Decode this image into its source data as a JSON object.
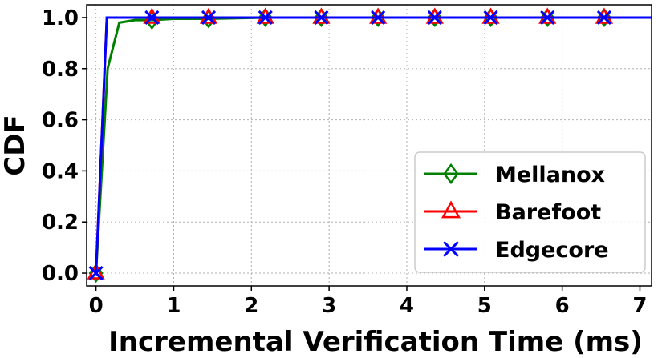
{
  "chart_data": {
    "type": "line",
    "xlabel": "Incremental Verification Time (ms)",
    "ylabel": "CDF",
    "xlim": [
      -0.12,
      7.15
    ],
    "ylim": [
      -0.05,
      1.05
    ],
    "xticks": [
      "0",
      "1",
      "2",
      "3",
      "4",
      "5",
      "6",
      "7"
    ],
    "yticks": [
      "0.0",
      "0.2",
      "0.4",
      "0.6",
      "0.8",
      "1.0"
    ],
    "grid": true,
    "legend_position": "lower-right",
    "series": [
      {
        "name": "Mellanox",
        "color": "#008000",
        "marker": "diamond",
        "x": [
          0.0,
          0.15,
          0.3,
          0.5,
          0.72,
          1.0,
          1.45,
          2.18,
          2.9,
          3.63,
          4.36,
          5.08,
          5.81,
          6.54,
          7.15
        ],
        "y": [
          0.0,
          0.8,
          0.98,
          0.99,
          0.99,
          0.995,
          0.995,
          1.0,
          1.0,
          1.0,
          1.0,
          1.0,
          1.0,
          1.0,
          1.0
        ],
        "marker_x": [
          0.0,
          0.72,
          1.45,
          2.18,
          2.9,
          3.63,
          4.36,
          5.08,
          5.81,
          6.54
        ]
      },
      {
        "name": "Barefoot",
        "color": "#ff0000",
        "marker": "triangle",
        "x": [
          0.0,
          0.14,
          0.72,
          1.45,
          2.18,
          2.9,
          3.63,
          4.36,
          5.08,
          5.81,
          6.54,
          7.15
        ],
        "y": [
          0.0,
          1.0,
          1.0,
          1.0,
          1.0,
          1.0,
          1.0,
          1.0,
          1.0,
          1.0,
          1.0,
          1.0
        ],
        "marker_x": [
          0.0,
          0.72,
          1.45,
          2.18,
          2.9,
          3.63,
          4.36,
          5.08,
          5.81,
          6.54
        ]
      },
      {
        "name": "Edgecore",
        "color": "#0000ff",
        "marker": "x",
        "x": [
          0.0,
          0.14,
          0.72,
          1.45,
          2.18,
          2.9,
          3.63,
          4.36,
          5.08,
          5.81,
          6.54,
          7.15
        ],
        "y": [
          0.0,
          1.0,
          1.0,
          1.0,
          1.0,
          1.0,
          1.0,
          1.0,
          1.0,
          1.0,
          1.0,
          1.0
        ],
        "marker_x": [
          0.0,
          0.72,
          1.45,
          2.18,
          2.9,
          3.63,
          4.36,
          5.08,
          5.81,
          6.54
        ]
      }
    ]
  }
}
